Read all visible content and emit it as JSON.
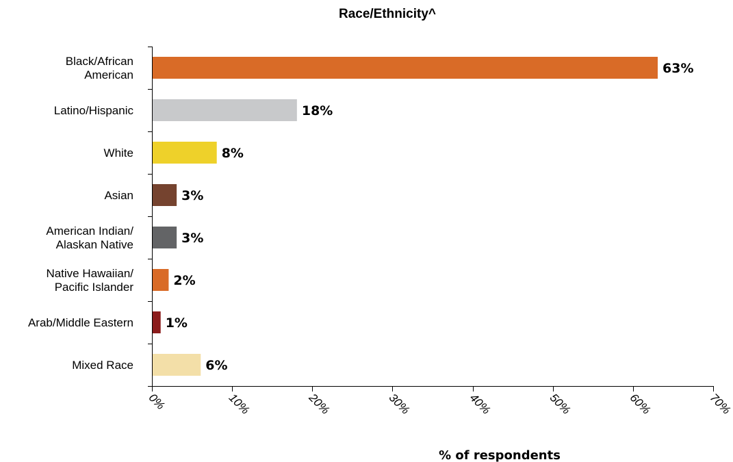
{
  "chart_data": {
    "type": "bar",
    "orientation": "horizontal",
    "title": "Race/Ethnicity^",
    "xlabel": "% of respondents",
    "ylabel": "",
    "xlim": [
      0,
      70
    ],
    "grid": false,
    "x_ticks": [
      "0%",
      "10%",
      "20%",
      "30%",
      "40%",
      "50%",
      "60%",
      "70%"
    ],
    "categories": [
      "Black/African American",
      "Latino/Hispanic",
      "White",
      "Asian",
      "American Indian/ Alaskan Native",
      "Native Hawaiian/ Pacific Islander",
      "Arab/Middle Eastern",
      "Mixed Race"
    ],
    "category_lines": [
      [
        "Black/African",
        "American"
      ],
      [
        "Latino/Hispanic"
      ],
      [
        "White"
      ],
      [
        "Asian"
      ],
      [
        "American Indian/",
        "Alaskan Native"
      ],
      [
        "Native Hawaiian/",
        "Pacific Islander"
      ],
      [
        "Arab/Middle Eastern"
      ],
      [
        "Mixed Race"
      ]
    ],
    "values": [
      63,
      18,
      8,
      3,
      3,
      2,
      1,
      6
    ],
    "value_labels": [
      "63%",
      "18%",
      "8%",
      "3%",
      "3%",
      "2%",
      "1%",
      "6%"
    ],
    "colors": [
      "#d96b27",
      "#c8c9cb",
      "#eed12a",
      "#75432f",
      "#636466",
      "#d96b27",
      "#8b1c1c",
      "#f3dfa8"
    ]
  }
}
